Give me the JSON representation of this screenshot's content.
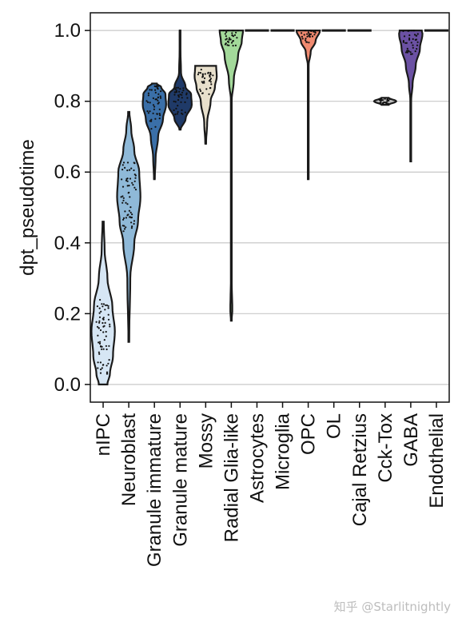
{
  "chart_data": {
    "type": "violin",
    "title": "",
    "xlabel": "",
    "ylabel": "dpt_pseudotime",
    "ylim": [
      -0.05,
      1.05
    ],
    "yticks": [
      "0.0",
      "0.2",
      "0.4",
      "0.6",
      "0.8",
      "1.0"
    ],
    "grid": "horizontal",
    "categories": [
      {
        "name": "nIPC",
        "color": "#d6e6f4",
        "min": 0.0,
        "max": 0.46,
        "median": 0.14,
        "q1": 0.06,
        "q3": 0.21,
        "profile": [
          [
            0.0,
            0.35
          ],
          [
            0.03,
            0.55
          ],
          [
            0.08,
            0.8
          ],
          [
            0.15,
            0.95
          ],
          [
            0.22,
            0.75
          ],
          [
            0.3,
            0.35
          ],
          [
            0.38,
            0.12
          ],
          [
            0.46,
            0.05
          ]
        ]
      },
      {
        "name": "Neuroblast",
        "color": "#8fb9d8",
        "min": 0.12,
        "max": 0.77,
        "median": 0.53,
        "q1": 0.46,
        "q3": 0.6,
        "profile": [
          [
            0.12,
            0.03
          ],
          [
            0.3,
            0.12
          ],
          [
            0.4,
            0.45
          ],
          [
            0.46,
            0.75
          ],
          [
            0.53,
            0.95
          ],
          [
            0.6,
            0.85
          ],
          [
            0.66,
            0.45
          ],
          [
            0.72,
            0.2
          ],
          [
            0.77,
            0.05
          ]
        ]
      },
      {
        "name": "Granule immature",
        "color": "#3a6fa8",
        "min": 0.58,
        "max": 0.85,
        "median": 0.8,
        "q1": 0.74,
        "q3": 0.83,
        "profile": [
          [
            0.58,
            0.03
          ],
          [
            0.64,
            0.1
          ],
          [
            0.7,
            0.3
          ],
          [
            0.75,
            0.7
          ],
          [
            0.79,
            0.95
          ],
          [
            0.82,
            0.9
          ],
          [
            0.84,
            0.55
          ],
          [
            0.85,
            0.2
          ]
        ]
      },
      {
        "name": "Granule mature",
        "color": "#1f3a68",
        "min": 0.72,
        "max": 1.0,
        "median": 0.8,
        "q1": 0.77,
        "q3": 0.83,
        "profile": [
          [
            0.72,
            0.05
          ],
          [
            0.75,
            0.45
          ],
          [
            0.79,
            0.95
          ],
          [
            0.82,
            0.9
          ],
          [
            0.84,
            0.45
          ],
          [
            0.88,
            0.08
          ],
          [
            0.95,
            0.03
          ],
          [
            1.0,
            0.03
          ]
        ]
      },
      {
        "name": "Mossy",
        "color": "#e8e0cc",
        "min": 0.68,
        "max": 0.9,
        "median": 0.86,
        "q1": 0.83,
        "q3": 0.88,
        "profile": [
          [
            0.68,
            0.03
          ],
          [
            0.74,
            0.12
          ],
          [
            0.8,
            0.4
          ],
          [
            0.84,
            0.75
          ],
          [
            0.87,
            0.9
          ],
          [
            0.9,
            0.85
          ]
        ]
      },
      {
        "name": "Radial Glia-like",
        "color": "#a3d99a",
        "min": 0.18,
        "max": 1.0,
        "median": 0.99,
        "q1": 0.96,
        "q3": 1.0,
        "profile": [
          [
            0.18,
            0.03
          ],
          [
            0.21,
            0.08
          ],
          [
            0.3,
            0.03
          ],
          [
            0.8,
            0.03
          ],
          [
            0.86,
            0.2
          ],
          [
            0.93,
            0.55
          ],
          [
            0.97,
            0.85
          ],
          [
            1.0,
            0.95
          ]
        ]
      },
      {
        "name": "Astrocytes",
        "color": "#f0f0f0",
        "min": 1.0,
        "max": 1.0,
        "median": 1.0,
        "q1": 1.0,
        "q3": 1.0,
        "profile": []
      },
      {
        "name": "Microglia",
        "color": "#b7b7b7",
        "min": 1.0,
        "max": 1.0,
        "median": 1.0,
        "q1": 1.0,
        "q3": 1.0,
        "profile": []
      },
      {
        "name": "OPC",
        "color": "#f08a70",
        "min": 0.58,
        "max": 1.0,
        "median": 0.99,
        "q1": 0.97,
        "q3": 1.0,
        "profile": [
          [
            0.58,
            0.03
          ],
          [
            0.9,
            0.03
          ],
          [
            0.94,
            0.2
          ],
          [
            0.97,
            0.6
          ],
          [
            1.0,
            0.95
          ]
        ]
      },
      {
        "name": "OL",
        "color": "#d9d9d9",
        "min": 1.0,
        "max": 1.0,
        "median": 1.0,
        "q1": 1.0,
        "q3": 1.0,
        "profile": []
      },
      {
        "name": "Cajal Retzius",
        "color": "#f0f0f0",
        "min": 1.0,
        "max": 1.0,
        "median": 1.0,
        "q1": 1.0,
        "q3": 1.0,
        "profile": []
      },
      {
        "name": "Cck-Tox",
        "color": "#bdbdbd",
        "min": 0.79,
        "max": 0.81,
        "median": 0.8,
        "q1": 0.795,
        "q3": 0.805,
        "profile": [
          [
            0.79,
            0.3
          ],
          [
            0.8,
            0.9
          ],
          [
            0.81,
            0.3
          ]
        ]
      },
      {
        "name": "GABA",
        "color": "#6b51a3",
        "min": 0.63,
        "max": 1.0,
        "median": 0.98,
        "q1": 0.94,
        "q3": 1.0,
        "profile": [
          [
            0.63,
            0.03
          ],
          [
            0.8,
            0.03
          ],
          [
            0.85,
            0.15
          ],
          [
            0.9,
            0.4
          ],
          [
            0.95,
            0.75
          ],
          [
            0.99,
            0.95
          ],
          [
            1.0,
            0.9
          ]
        ]
      },
      {
        "name": "Endothelial",
        "color": "#f0f0f0",
        "min": 1.0,
        "max": 1.0,
        "median": 1.0,
        "q1": 1.0,
        "q3": 1.0,
        "profile": []
      }
    ]
  },
  "watermark": "知乎 @Starlitnightly"
}
